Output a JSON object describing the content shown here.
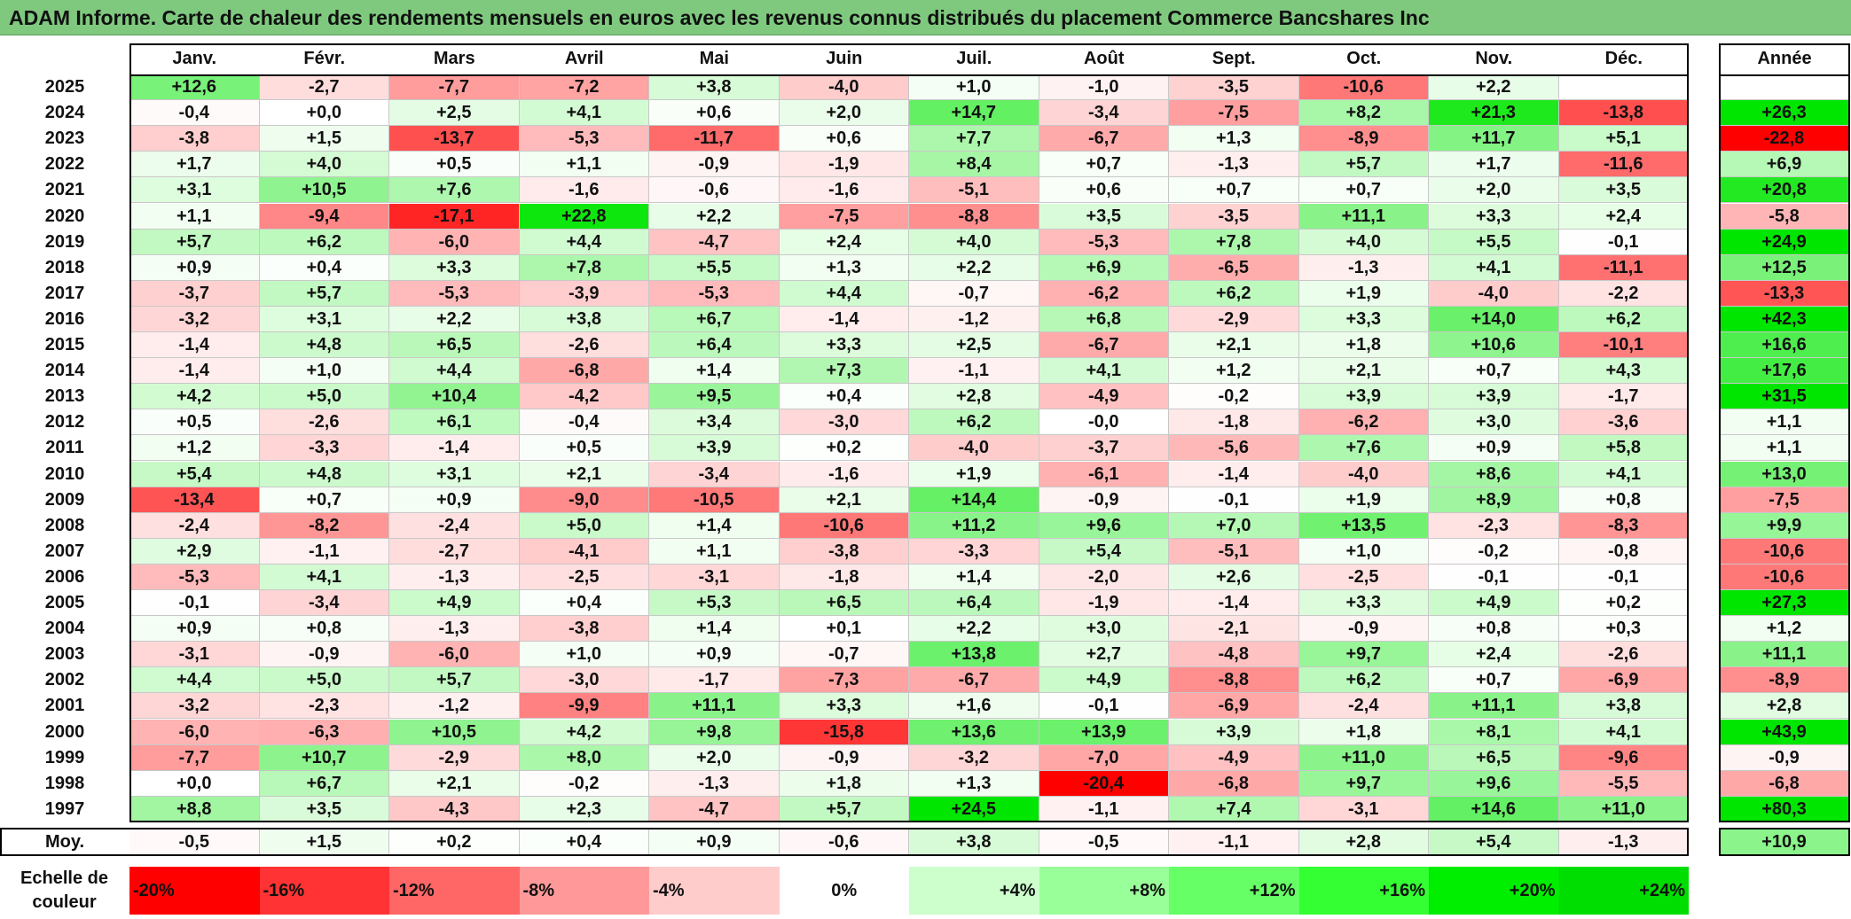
{
  "title": "ADAM Informe. Carte de chaleur des rendements mensuels en euros avec les revenus connus distribués du placement Commerce Bancshares Inc",
  "chart_data": {
    "type": "heatmap",
    "title": "ADAM Informe. Carte de chaleur des rendements mensuels en euros avec les revenus connus distribués du placement Commerce Bancshares Inc",
    "columns": [
      "Janv.",
      "Févr.",
      "Mars",
      "Avril",
      "Mai",
      "Juin",
      "Juil.",
      "Août",
      "Sept.",
      "Oct.",
      "Nov.",
      "Déc."
    ],
    "year_column_label": "Année",
    "rows": [
      {
        "year": "2025",
        "values": [
          "+12,6",
          "-2,7",
          "-7,7",
          "-7,2",
          "+3,8",
          "-4,0",
          "+1,0",
          "-1,0",
          "-3,5",
          "-10,6",
          "+2,2",
          ""
        ],
        "annual": ""
      },
      {
        "year": "2024",
        "values": [
          "-0,4",
          "+0,0",
          "+2,5",
          "+4,1",
          "+0,6",
          "+2,0",
          "+14,7",
          "-3,4",
          "-7,5",
          "+8,2",
          "+21,3",
          "-13,8"
        ],
        "annual": "+26,3"
      },
      {
        "year": "2023",
        "values": [
          "-3,8",
          "+1,5",
          "-13,7",
          "-5,3",
          "-11,7",
          "+0,6",
          "+7,7",
          "-6,7",
          "+1,3",
          "-8,9",
          "+11,7",
          "+5,1"
        ],
        "annual": "-22,8"
      },
      {
        "year": "2022",
        "values": [
          "+1,7",
          "+4,0",
          "+0,5",
          "+1,1",
          "-0,9",
          "-1,9",
          "+8,4",
          "+0,7",
          "-1,3",
          "+5,7",
          "+1,7",
          "-11,6"
        ],
        "annual": "+6,9"
      },
      {
        "year": "2021",
        "values": [
          "+3,1",
          "+10,5",
          "+7,6",
          "-1,6",
          "-0,6",
          "-1,6",
          "-5,1",
          "+0,6",
          "+0,7",
          "+0,7",
          "+2,0",
          "+3,5"
        ],
        "annual": "+20,8"
      },
      {
        "year": "2020",
        "values": [
          "+1,1",
          "-9,4",
          "-17,1",
          "+22,8",
          "+2,2",
          "-7,5",
          "-8,8",
          "+3,5",
          "-3,5",
          "+11,1",
          "+3,3",
          "+2,4"
        ],
        "annual": "-5,8"
      },
      {
        "year": "2019",
        "values": [
          "+5,7",
          "+6,2",
          "-6,0",
          "+4,4",
          "-4,7",
          "+2,4",
          "+4,0",
          "-5,3",
          "+7,8",
          "+4,0",
          "+5,5",
          "-0,1"
        ],
        "annual": "+24,9"
      },
      {
        "year": "2018",
        "values": [
          "+0,9",
          "+0,4",
          "+3,3",
          "+7,8",
          "+5,5",
          "+1,3",
          "+2,2",
          "+6,9",
          "-6,5",
          "-1,3",
          "+4,1",
          "-11,1"
        ],
        "annual": "+12,5"
      },
      {
        "year": "2017",
        "values": [
          "-3,7",
          "+5,7",
          "-5,3",
          "-3,9",
          "-5,3",
          "+4,4",
          "-0,7",
          "-6,2",
          "+6,2",
          "+1,9",
          "-4,0",
          "-2,2"
        ],
        "annual": "-13,3"
      },
      {
        "year": "2016",
        "values": [
          "-3,2",
          "+3,1",
          "+2,2",
          "+3,8",
          "+6,7",
          "-1,4",
          "-1,2",
          "+6,8",
          "-2,9",
          "+3,3",
          "+14,0",
          "+6,2"
        ],
        "annual": "+42,3"
      },
      {
        "year": "2015",
        "values": [
          "-1,4",
          "+4,8",
          "+6,5",
          "-2,6",
          "+6,4",
          "+3,3",
          "+2,5",
          "-6,7",
          "+2,1",
          "+1,8",
          "+10,6",
          "-10,1"
        ],
        "annual": "+16,6"
      },
      {
        "year": "2014",
        "values": [
          "-1,4",
          "+1,0",
          "+4,4",
          "-6,8",
          "+1,4",
          "+7,3",
          "-1,1",
          "+4,1",
          "+1,2",
          "+2,1",
          "+0,7",
          "+4,3"
        ],
        "annual": "+17,6"
      },
      {
        "year": "2013",
        "values": [
          "+4,2",
          "+5,0",
          "+10,4",
          "-4,2",
          "+9,5",
          "+0,4",
          "+2,8",
          "-4,9",
          "-0,2",
          "+3,9",
          "+3,9",
          "-1,7"
        ],
        "annual": "+31,5"
      },
      {
        "year": "2012",
        "values": [
          "+0,5",
          "-2,6",
          "+6,1",
          "-0,4",
          "+3,4",
          "-3,0",
          "+6,2",
          "-0,0",
          "-1,8",
          "-6,2",
          "+3,0",
          "-3,6"
        ],
        "annual": "+1,1"
      },
      {
        "year": "2011",
        "values": [
          "+1,2",
          "-3,3",
          "-1,4",
          "+0,5",
          "+3,9",
          "+0,2",
          "-4,0",
          "-3,7",
          "-5,6",
          "+7,6",
          "+0,9",
          "+5,8"
        ],
        "annual": "+1,1"
      },
      {
        "year": "2010",
        "values": [
          "+5,4",
          "+4,8",
          "+3,1",
          "+2,1",
          "-3,4",
          "-1,6",
          "+1,9",
          "-6,1",
          "-1,4",
          "-4,0",
          "+8,6",
          "+4,1"
        ],
        "annual": "+13,0"
      },
      {
        "year": "2009",
        "values": [
          "-13,4",
          "+0,7",
          "+0,9",
          "-9,0",
          "-10,5",
          "+2,1",
          "+14,4",
          "-0,9",
          "-0,1",
          "+1,9",
          "+8,9",
          "+0,8"
        ],
        "annual": "-7,5"
      },
      {
        "year": "2008",
        "values": [
          "-2,4",
          "-8,2",
          "-2,4",
          "+5,0",
          "+1,4",
          "-10,6",
          "+11,2",
          "+9,6",
          "+7,0",
          "+13,5",
          "-2,3",
          "-8,3"
        ],
        "annual": "+9,9"
      },
      {
        "year": "2007",
        "values": [
          "+2,9",
          "-1,1",
          "-2,7",
          "-4,1",
          "+1,1",
          "-3,8",
          "-3,3",
          "+5,4",
          "-5,1",
          "+1,0",
          "-0,2",
          "-0,8"
        ],
        "annual": "-10,6"
      },
      {
        "year": "2006",
        "values": [
          "-5,3",
          "+4,1",
          "-1,3",
          "-2,5",
          "-3,1",
          "-1,8",
          "+1,4",
          "-2,0",
          "+2,6",
          "-2,5",
          "-0,1",
          "-0,1"
        ],
        "annual": "-10,6"
      },
      {
        "year": "2005",
        "values": [
          "-0,1",
          "-3,4",
          "+4,9",
          "+0,4",
          "+5,3",
          "+6,5",
          "+6,4",
          "-1,9",
          "-1,4",
          "+3,3",
          "+4,9",
          "+0,2"
        ],
        "annual": "+27,3"
      },
      {
        "year": "2004",
        "values": [
          "+0,9",
          "+0,8",
          "-1,3",
          "-3,8",
          "+1,4",
          "+0,1",
          "+2,2",
          "+3,0",
          "-2,1",
          "-0,9",
          "+0,8",
          "+0,3"
        ],
        "annual": "+1,2"
      },
      {
        "year": "2003",
        "values": [
          "-3,1",
          "-0,9",
          "-6,0",
          "+1,0",
          "+0,9",
          "-0,7",
          "+13,8",
          "+2,7",
          "-4,8",
          "+9,7",
          "+2,4",
          "-2,6"
        ],
        "annual": "+11,1"
      },
      {
        "year": "2002",
        "values": [
          "+4,4",
          "+5,0",
          "+5,7",
          "-3,0",
          "-1,7",
          "-7,3",
          "-6,7",
          "+4,9",
          "-8,8",
          "+6,2",
          "+0,7",
          "-6,9"
        ],
        "annual": "-8,9"
      },
      {
        "year": "2001",
        "values": [
          "-3,2",
          "-2,3",
          "-1,2",
          "-9,9",
          "+11,1",
          "+3,3",
          "+1,6",
          "-0,1",
          "-6,9",
          "-2,4",
          "+11,1",
          "+3,8"
        ],
        "annual": "+2,8"
      },
      {
        "year": "2000",
        "values": [
          "-6,0",
          "-6,3",
          "+10,5",
          "+4,2",
          "+9,8",
          "-15,8",
          "+13,6",
          "+13,9",
          "+3,9",
          "+1,8",
          "+8,1",
          "+4,1"
        ],
        "annual": "+43,9"
      },
      {
        "year": "1999",
        "values": [
          "-7,7",
          "+10,7",
          "-2,9",
          "+8,0",
          "+2,0",
          "-0,9",
          "-3,2",
          "-7,0",
          "-4,9",
          "+11,0",
          "+6,5",
          "-9,6"
        ],
        "annual": "-0,9"
      },
      {
        "year": "1998",
        "values": [
          "+0,0",
          "+6,7",
          "+2,1",
          "-0,2",
          "-1,3",
          "+1,8",
          "+1,3",
          "-20,4",
          "-6,8",
          "+9,7",
          "+9,6",
          "-5,5"
        ],
        "annual": "-6,8"
      },
      {
        "year": "1997",
        "values": [
          "+8,8",
          "+3,5",
          "-4,3",
          "+2,3",
          "-4,7",
          "+5,7",
          "+24,5",
          "-1,1",
          "+7,4",
          "-3,1",
          "+14,6",
          "+11,0"
        ],
        "annual": "+80,3"
      }
    ],
    "average": {
      "label": "Moy.",
      "values": [
        "-0,5",
        "+1,5",
        "+0,2",
        "+0,4",
        "+0,9",
        "-0,6",
        "+3,8",
        "-0,5",
        "-1,1",
        "+2,8",
        "+5,4",
        "-1,3"
      ],
      "annual": "+10,9"
    },
    "color_scale": {
      "label_line1": "Echelle de",
      "label_line2": "couleur",
      "stops": [
        {
          "label": "-20%",
          "value": -20,
          "color": "#ff0000"
        },
        {
          "label": "-16%",
          "value": -16,
          "color": "#ff3333"
        },
        {
          "label": "-12%",
          "value": -12,
          "color": "#ff6666"
        },
        {
          "label": "-8%",
          "value": -8,
          "color": "#ff9999"
        },
        {
          "label": "-4%",
          "value": -4,
          "color": "#ffcccc"
        },
        {
          "label": "0%",
          "value": 0,
          "color": "#ffffff"
        },
        {
          "label": "+4%",
          "value": 4,
          "color": "#ccffcc"
        },
        {
          "label": "+8%",
          "value": 8,
          "color": "#99ff99"
        },
        {
          "label": "+12%",
          "value": 12,
          "color": "#66ff66"
        },
        {
          "label": "+16%",
          "value": 16,
          "color": "#33ff33"
        },
        {
          "label": "+20%",
          "value": 20,
          "color": "#00ee00"
        },
        {
          "label": "+24%",
          "value": 24,
          "color": "#00dd00"
        }
      ]
    }
  }
}
